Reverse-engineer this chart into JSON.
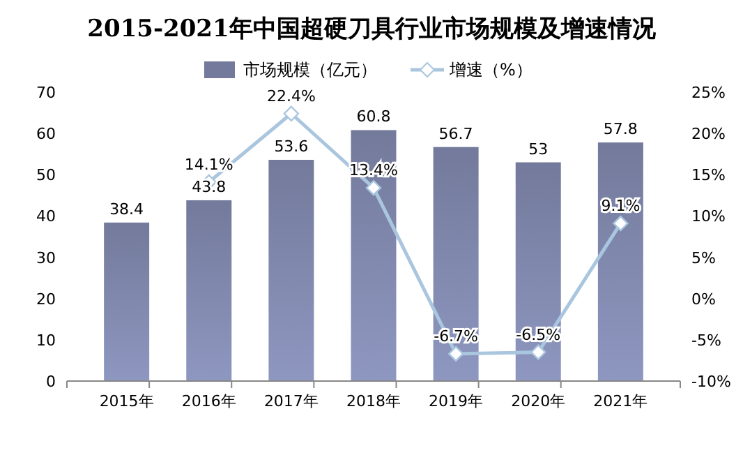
{
  "chart_data": {
    "type": "bar",
    "title": "2015-2021年中国超硬刀具行业市场规模及增速情况",
    "categories": [
      "2015年",
      "2016年",
      "2017年",
      "2018年",
      "2019年",
      "2020年",
      "2021年"
    ],
    "series": [
      {
        "name": "市场规模（亿元）",
        "color": "#737a9b",
        "values": [
          38.4,
          43.8,
          53.6,
          60.8,
          56.7,
          53,
          57.8
        ],
        "value_labels": [
          "38.4",
          "43.8",
          "53.6",
          "60.8",
          "56.7",
          "53",
          "57.8"
        ]
      },
      {
        "name": "增速（%）",
        "type": "line",
        "axis": "y2",
        "color": "#aac6df",
        "marker": "diamond",
        "values": [
          null,
          14.1,
          22.4,
          13.4,
          -6.7,
          -6.5,
          9.1
        ],
        "value_labels": [
          null,
          "14.1%",
          "22.4%",
          "13.4%",
          "-6.7%",
          "-6.5%",
          "9.1%"
        ]
      }
    ],
    "ylim": [
      0,
      70
    ],
    "yticks": [
      0,
      10,
      20,
      30,
      40,
      50,
      60,
      70
    ],
    "y2lim": [
      -10,
      25
    ],
    "y2ticks": [
      {
        "value": -10,
        "label": "-10%"
      },
      {
        "value": -5,
        "label": "-5%"
      },
      {
        "value": 0,
        "label": "0%"
      },
      {
        "value": 5,
        "label": "5%"
      },
      {
        "value": 10,
        "label": "10%"
      },
      {
        "value": 15,
        "label": "15%"
      },
      {
        "value": 20,
        "label": "20%"
      },
      {
        "value": 25,
        "label": "25%"
      }
    ],
    "legend": "top"
  }
}
